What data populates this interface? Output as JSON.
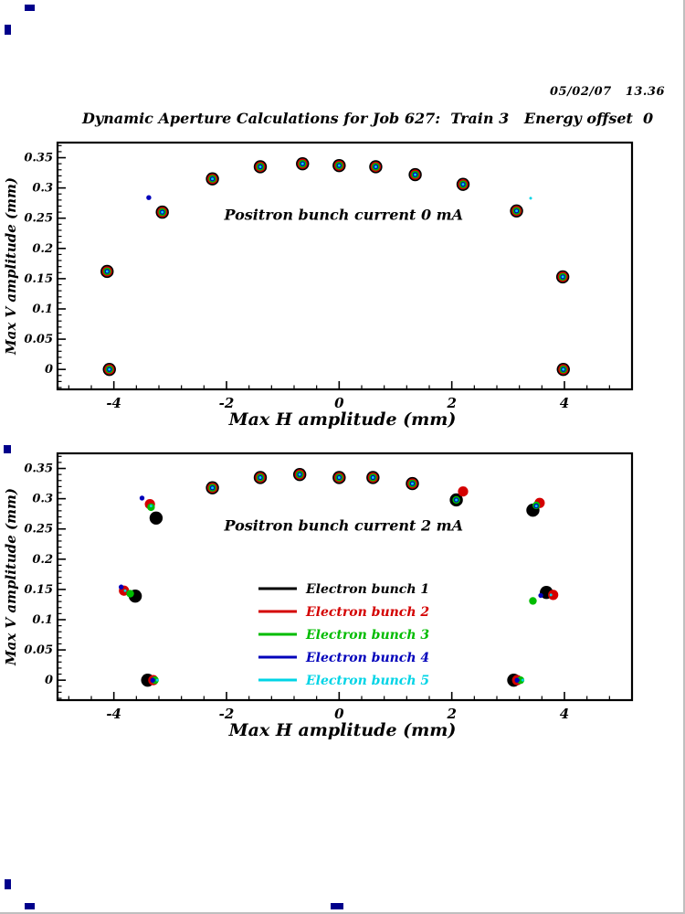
{
  "page": {
    "date_stamp": "05/02/07   13.36",
    "main_title": "Dynamic Aperture Calculations for Job 627:  Train 3   Energy offset  0",
    "corner_mark_color": "#00008b",
    "frame_color": "#000000"
  },
  "chart_data": [
    {
      "type": "scatter",
      "panel": "top",
      "title": "Positron bunch current  0 mA",
      "xlabel": "Max H amplitude (mm)",
      "ylabel": "Max V amplitude (mm)",
      "xlim": [
        -5.0,
        5.2
      ],
      "ylim": [
        -0.033,
        0.375
      ],
      "xticks": [
        -4,
        -2,
        0,
        2,
        4
      ],
      "yticks": [
        0,
        0.05,
        0.1,
        0.15,
        0.2,
        0.25,
        0.3,
        0.35
      ],
      "ytick_labels": [
        "0",
        "0.05",
        "0.1",
        "0.15",
        "0.2",
        "0.25",
        "0.3",
        "0.35"
      ],
      "show_legend": false,
      "shared_points": [
        [
          -4.08,
          0.0
        ],
        [
          -4.12,
          0.162
        ],
        [
          -3.14,
          0.26
        ],
        [
          -2.25,
          0.315
        ],
        [
          -1.4,
          0.335
        ],
        [
          -0.65,
          0.34
        ],
        [
          0.0,
          0.337
        ],
        [
          0.65,
          0.335
        ],
        [
          1.35,
          0.322
        ],
        [
          2.2,
          0.306
        ],
        [
          3.15,
          0.262
        ],
        [
          3.97,
          0.153
        ],
        [
          3.98,
          0.0
        ]
      ],
      "series": [
        {
          "name": "Electron bunch 1",
          "color": "#000000",
          "r": 7.2,
          "points": []
        },
        {
          "name": "Electron bunch 2",
          "color": "#d40000",
          "r": 5.6,
          "points": []
        },
        {
          "name": "Electron bunch 3",
          "color": "#00bc00",
          "r": 4.2,
          "points": []
        },
        {
          "name": "Electron bunch 4",
          "color": "#0000bb",
          "r": 2.7,
          "points": [
            [
              -3.38,
              0.284
            ]
          ]
        },
        {
          "name": "Electron bunch 5",
          "color": "#00d4e6",
          "r": 1.5,
          "points": [
            [
              3.4,
              0.283
            ]
          ]
        }
      ]
    },
    {
      "type": "scatter",
      "panel": "bottom",
      "title": "Positron bunch current  2 mA",
      "xlabel": "Max H amplitude (mm)",
      "ylabel": "Max V amplitude (mm)",
      "xlim": [
        -5.0,
        5.2
      ],
      "ylim": [
        -0.033,
        0.375
      ],
      "xticks": [
        -4,
        -2,
        0,
        2,
        4
      ],
      "yticks": [
        0,
        0.05,
        0.1,
        0.15,
        0.2,
        0.25,
        0.3,
        0.35
      ],
      "ytick_labels": [
        "0",
        "0.05",
        "0.1",
        "0.15",
        "0.2",
        "0.25",
        "0.3",
        "0.35"
      ],
      "show_legend": true,
      "shared_points": [
        [
          -2.25,
          0.318
        ],
        [
          -1.4,
          0.335
        ],
        [
          -0.7,
          0.34
        ],
        [
          0.0,
          0.335
        ],
        [
          0.6,
          0.335
        ],
        [
          1.3,
          0.325
        ]
      ],
      "series": [
        {
          "name": "Electron bunch 1",
          "color": "#000000",
          "r": 7.2,
          "points": [
            [
              -3.4,
              0.0
            ],
            [
              -3.62,
              0.139
            ],
            [
              -3.25,
              0.268
            ],
            [
              2.08,
              0.298
            ],
            [
              3.44,
              0.281
            ],
            [
              3.68,
              0.145
            ],
            [
              3.1,
              0.0
            ]
          ]
        },
        {
          "name": "Electron bunch 2",
          "color": "#d40000",
          "r": 5.6,
          "points": [
            [
              -3.3,
              0.0
            ],
            [
              -3.82,
              0.148
            ],
            [
              -3.36,
              0.291
            ],
            [
              2.2,
              0.312
            ],
            [
              3.56,
              0.293
            ],
            [
              3.8,
              0.141
            ],
            [
              3.16,
              0.0
            ]
          ]
        },
        {
          "name": "Electron bunch 3",
          "color": "#00bc00",
          "r": 4.2,
          "points": [
            [
              -3.27,
              0.0
            ],
            [
              -3.71,
              0.143
            ],
            [
              -3.34,
              0.286
            ],
            [
              2.08,
              0.298
            ],
            [
              3.5,
              0.289
            ],
            [
              3.44,
              0.131
            ],
            [
              3.22,
              0.0
            ]
          ]
        },
        {
          "name": "Electron bunch 4",
          "color": "#0000bb",
          "r": 2.7,
          "points": [
            [
              -3.31,
              0.0
            ],
            [
              -3.87,
              0.154
            ],
            [
              -3.5,
              0.301
            ],
            [
              2.08,
              0.298
            ],
            [
              3.5,
              0.288
            ],
            [
              3.58,
              0.14
            ],
            [
              3.16,
              0.0
            ]
          ]
        },
        {
          "name": "Electron bunch 5",
          "color": "#00d4e6",
          "r": 1.5,
          "points": [
            [
              -3.23,
              0.0
            ],
            [
              -3.8,
              0.148
            ],
            [
              -3.34,
              0.288
            ],
            [
              2.08,
              0.298
            ],
            [
              3.5,
              0.288
            ],
            [
              3.76,
              0.141
            ],
            [
              3.26,
              0.0
            ]
          ]
        }
      ]
    }
  ]
}
